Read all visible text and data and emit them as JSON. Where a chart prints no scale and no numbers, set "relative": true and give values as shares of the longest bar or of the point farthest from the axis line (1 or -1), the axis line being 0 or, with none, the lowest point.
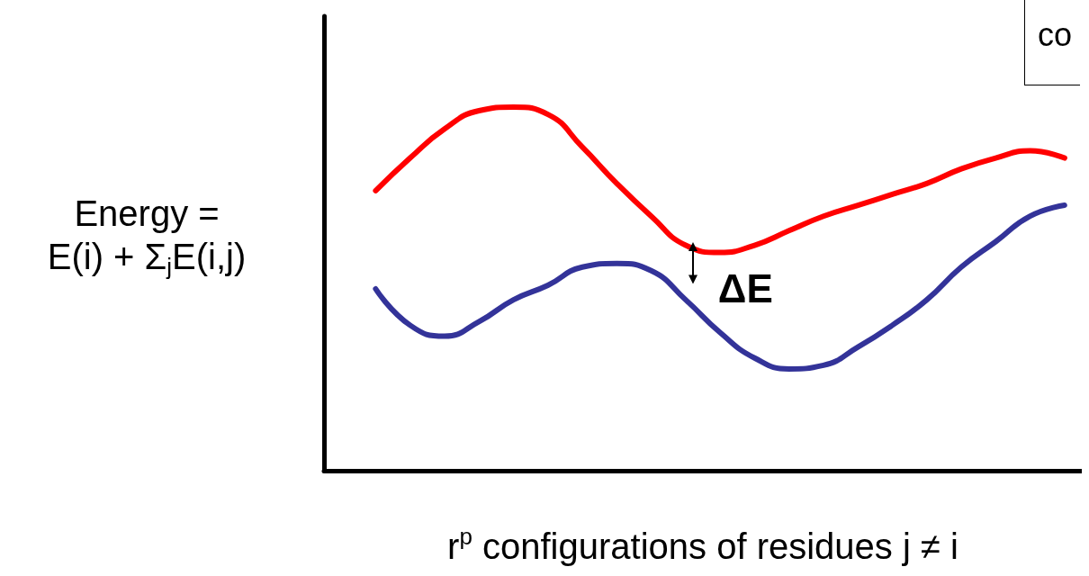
{
  "chart_data": {
    "type": "line",
    "relative": true,
    "xlabel": "r$^{p}$ configurations of residues j ≠ i",
    "ylabel": "Energy =\nE(i) + Σ$_{j}$E(i,j)",
    "categories": [
      null,
      null,
      null,
      null,
      null,
      null,
      null,
      null,
      null,
      null,
      null,
      null,
      null,
      null,
      null,
      null,
      null,
      null,
      null,
      null,
      null,
      null
    ],
    "series": [
      {
        "color": "#ff0000",
        "values": [
          null,
          0.77,
          0.86,
          0.94,
          0.99,
          1,
          0.98,
          0.89,
          0.79,
          0.7,
          0.62,
          0.6,
          0.62,
          0.66,
          0.7,
          0.73,
          0.76,
          0.79,
          0.83,
          0.86,
          0.88,
          0.86
        ]
      },
      {
        "color": "#333399",
        "values": [
          null,
          0.5,
          0.4,
          0.37,
          0.41,
          0.47,
          0.51,
          0.56,
          0.57,
          0.55,
          0.47,
          0.38,
          0.31,
          0.28,
          0.29,
          0.34,
          0.4,
          0.47,
          0.56,
          0.63,
          0.7,
          0.73
        ]
      }
    ],
    "annotations": [
      "ΔE",
      "co"
    ],
    "grid": false,
    "marker": "none",
    "line_style": "solid"
  }
}
